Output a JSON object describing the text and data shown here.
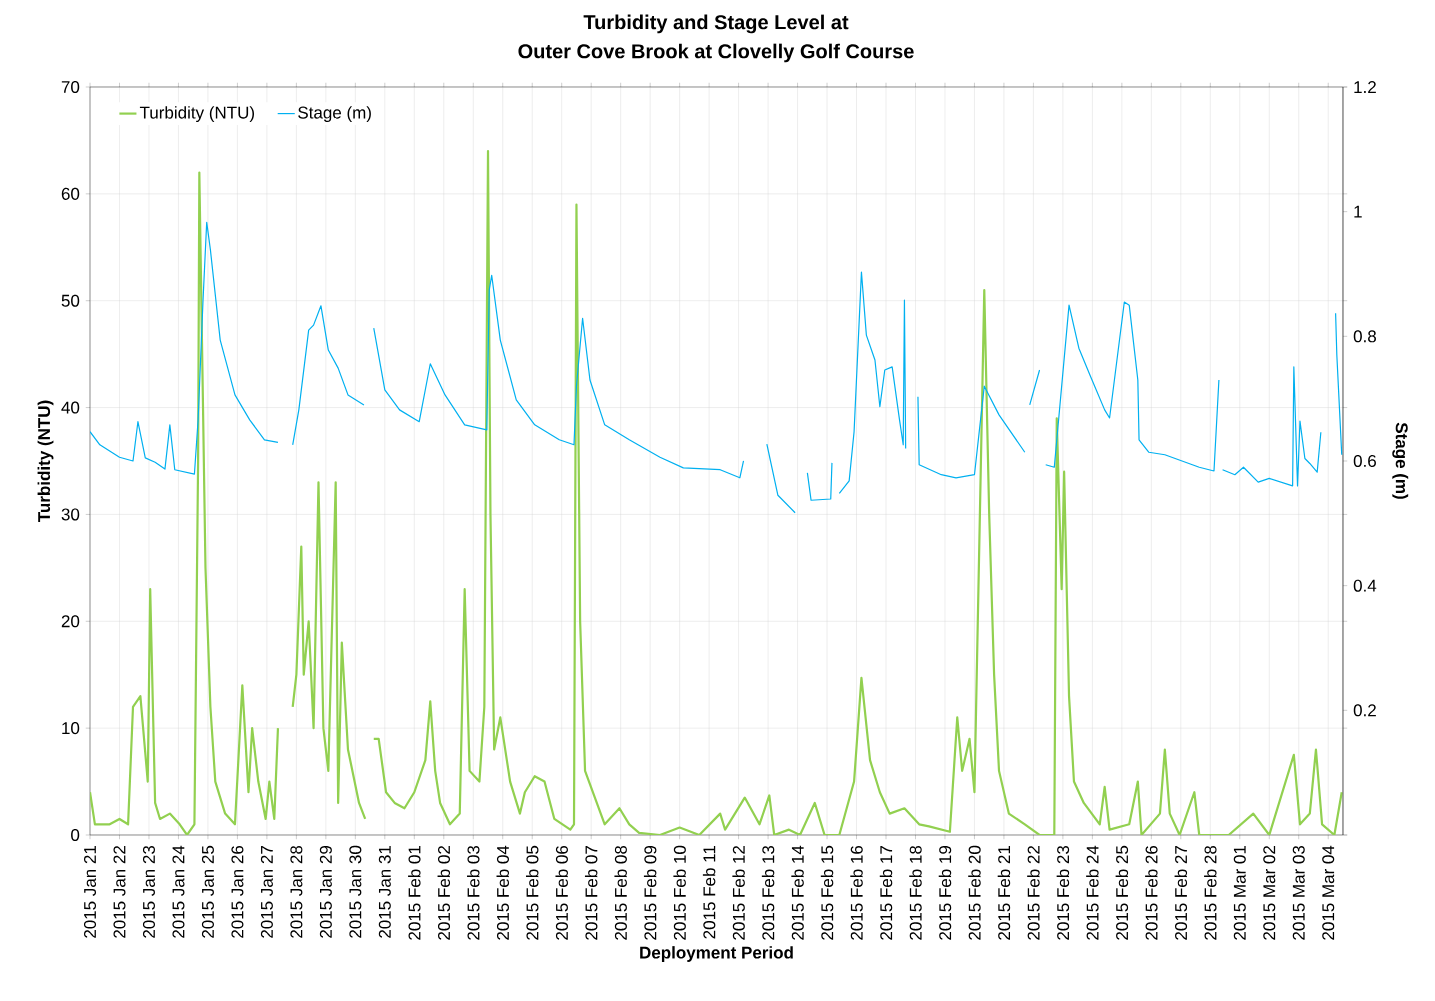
{
  "chart_data": {
    "type": "line",
    "title": "Turbidity and Stage Level at",
    "subtitle": "Outer Cove Brook at Clovelly Golf Course",
    "xlabel": "Deployment Period",
    "ylabel": "Turbidity (NTU)",
    "y2label": "Stage (m)",
    "xlim": [
      "2015-01-21T00:00",
      "2015-03-04T12:00"
    ],
    "xticks": [
      {
        "value": "2015-01-21",
        "label": "2015 Jan 21"
      },
      {
        "value": "2015-01-22",
        "label": "2015 Jan 22"
      },
      {
        "value": "2015-01-23",
        "label": "2015 Jan 23"
      },
      {
        "value": "2015-01-24",
        "label": "2015 Jan 24"
      },
      {
        "value": "2015-01-25",
        "label": "2015 Jan 25"
      },
      {
        "value": "2015-01-26",
        "label": "2015 Jan 26"
      },
      {
        "value": "2015-01-27",
        "label": "2015 Jan 27"
      },
      {
        "value": "2015-01-28",
        "label": "2015 Jan 28"
      },
      {
        "value": "2015-01-29",
        "label": "2015 Jan 29"
      },
      {
        "value": "2015-01-30",
        "label": "2015 Jan 30"
      },
      {
        "value": "2015-01-31",
        "label": "2015 Jan 31"
      },
      {
        "value": "2015-02-01",
        "label": "2015 Feb 01"
      },
      {
        "value": "2015-02-02",
        "label": "2015 Feb 02"
      },
      {
        "value": "2015-02-03",
        "label": "2015 Feb 03"
      },
      {
        "value": "2015-02-04",
        "label": "2015 Feb 04"
      },
      {
        "value": "2015-02-05",
        "label": "2015 Feb 05"
      },
      {
        "value": "2015-02-06",
        "label": "2015 Feb 06"
      },
      {
        "value": "2015-02-07",
        "label": "2015 Feb 07"
      },
      {
        "value": "2015-02-08",
        "label": "2015 Feb 08"
      },
      {
        "value": "2015-02-09",
        "label": "2015 Feb 09"
      },
      {
        "value": "2015-02-10",
        "label": "2015 Feb 10"
      },
      {
        "value": "2015-02-11",
        "label": "2015 Feb 11"
      },
      {
        "value": "2015-02-12",
        "label": "2015 Feb 12"
      },
      {
        "value": "2015-02-13",
        "label": "2015 Feb 13"
      },
      {
        "value": "2015-02-14",
        "label": "2015 Feb 14"
      },
      {
        "value": "2015-02-15",
        "label": "2015 Feb 15"
      },
      {
        "value": "2015-02-16",
        "label": "2015 Feb 16"
      },
      {
        "value": "2015-02-17",
        "label": "2015 Feb 17"
      },
      {
        "value": "2015-02-18",
        "label": "2015 Feb 18"
      },
      {
        "value": "2015-02-19",
        "label": "2015 Feb 19"
      },
      {
        "value": "2015-02-20",
        "label": "2015 Feb 20"
      },
      {
        "value": "2015-02-21",
        "label": "2015 Feb 21"
      },
      {
        "value": "2015-02-22",
        "label": "2015 Feb 22"
      },
      {
        "value": "2015-02-23",
        "label": "2015 Feb 23"
      },
      {
        "value": "2015-02-24",
        "label": "2015 Feb 24"
      },
      {
        "value": "2015-02-25",
        "label": "2015 Feb 25"
      },
      {
        "value": "2015-02-26",
        "label": "2015 Feb 26"
      },
      {
        "value": "2015-02-27",
        "label": "2015 Feb 27"
      },
      {
        "value": "2015-02-28",
        "label": "2015 Feb 28"
      },
      {
        "value": "2015-03-01",
        "label": "2015 Mar 01"
      },
      {
        "value": "2015-03-02",
        "label": "2015 Mar 02"
      },
      {
        "value": "2015-03-03",
        "label": "2015 Mar 03"
      },
      {
        "value": "2015-03-04",
        "label": "2015 Mar 04"
      }
    ],
    "ylim": [
      0,
      70
    ],
    "yticks": [
      0,
      10,
      20,
      30,
      40,
      50,
      60,
      70
    ],
    "y2lim": [
      0,
      1.2
    ],
    "y2ticks": [
      {
        "value": 0,
        "label": null
      },
      0.2,
      0.4,
      0.6,
      0.8,
      1,
      1.2
    ],
    "grid": true,
    "legend": "top left",
    "series": [
      {
        "name": "Turbidity (NTU)",
        "color": "#92d050",
        "x": [
          "2015-01-21T00:00",
          "2015-01-21T04:00",
          "2015-01-21T16:00",
          "2015-01-22T00:00",
          "2015-01-22T07:00",
          "2015-01-22T11:00",
          "2015-01-22T17:00",
          "2015-01-22T23:00",
          "2015-01-23T01:00",
          "2015-01-23T05:00",
          "2015-01-23T09:00",
          "2015-01-23T17:00",
          "2015-01-24T01:00",
          "2015-01-24T07:00",
          "2015-01-24T13:00",
          "2015-01-24T16:00",
          "2015-01-24T17:00",
          "2015-01-24T20:00",
          "2015-01-24T22:00",
          "2015-01-25T02:00",
          "2015-01-25T06:00",
          "2015-01-25T14:00",
          "2015-01-25T22:00",
          "2015-01-26T04:00",
          "2015-01-26T09:00",
          "2015-01-26T12:00",
          "2015-01-26T17:00",
          "2015-01-26T23:00",
          "2015-01-27T02:00",
          "2015-01-27T06:00",
          "2015-01-27T09:00",
          "2015-01-27T16:00",
          "2015-01-27T21:00",
          "2015-01-28T00:00",
          "2015-01-28T04:00",
          "2015-01-28T06:00",
          "2015-01-28T10:00",
          "2015-01-28T14:00",
          "2015-01-28T18:00",
          "2015-01-28T22:00",
          "2015-01-29T02:00",
          "2015-01-29T08:00",
          "2015-01-29T10:00",
          "2015-01-29T13:00",
          "2015-01-29T18:00",
          "2015-01-30T03:00",
          "2015-01-30T08:00",
          "2015-01-30T12:00",
          "2015-01-30T15:00",
          "2015-01-30T19:00",
          "2015-01-31T01:00",
          "2015-01-31T08:00",
          "2015-01-31T16:00",
          "2015-02-01T00:00",
          "2015-02-01T09:00",
          "2015-02-01T13:00",
          "2015-02-01T17:00",
          "2015-02-01T21:00",
          "2015-02-02T05:00",
          "2015-02-02T13:00",
          "2015-02-02T17:00",
          "2015-02-02T21:00",
          "2015-02-03T05:00",
          "2015-02-03T09:00",
          "2015-02-03T12:00",
          "2015-02-03T14:00",
          "2015-02-03T17:00",
          "2015-02-03T22:00",
          "2015-02-04T06:00",
          "2015-02-04T14:00",
          "2015-02-04T18:00",
          "2015-02-05T02:00",
          "2015-02-05T10:00",
          "2015-02-05T18:00",
          "2015-02-06T07:00",
          "2015-02-06T10:00",
          "2015-02-06T12:00",
          "2015-02-06T15:00",
          "2015-02-06T19:00",
          "2015-02-07T03:00",
          "2015-02-07T11:00",
          "2015-02-07T23:00",
          "2015-02-08T07:00",
          "2015-02-08T15:00",
          "2015-02-09T08:00",
          "2015-02-10T00:00",
          "2015-02-10T16:00",
          "2015-02-11T09:00",
          "2015-02-11T13:00",
          "2015-02-12T05:00",
          "2015-02-12T17:00",
          "2015-02-13T01:00",
          "2015-02-13T05:00",
          "2015-02-13T17:00",
          "2015-02-14T02:00",
          "2015-02-14T14:00",
          "2015-02-14T22:00",
          "2015-02-15T10:00",
          "2015-02-15T22:00",
          "2015-02-16T04:00",
          "2015-02-16T11:00",
          "2015-02-16T19:00",
          "2015-02-17T03:00",
          "2015-02-17T15:00",
          "2015-02-18T03:00",
          "2015-02-18T11:00",
          "2015-02-19T04:00",
          "2015-02-19T10:00",
          "2015-02-19T14:00",
          "2015-02-19T20:00",
          "2015-02-20T00:00",
          "2015-02-20T08:00",
          "2015-02-20T12:00",
          "2015-02-20T16:00",
          "2015-02-20T20:00",
          "2015-02-21T04:00",
          "2015-02-21T17:00",
          "2015-02-22T05:00",
          "2015-02-22T17:00",
          "2015-02-22T19:00",
          "2015-02-22T23:00",
          "2015-02-23T01:00",
          "2015-02-23T05:00",
          "2015-02-23T09:00",
          "2015-02-23T17:00",
          "2015-02-24T06:00",
          "2015-02-24T10:00",
          "2015-02-24T14:00",
          "2015-02-25T06:00",
          "2015-02-25T13:00",
          "2015-02-25T16:00",
          "2015-02-26T07:00",
          "2015-02-26T11:00",
          "2015-02-26T15:00",
          "2015-02-26T23:00",
          "2015-02-27T11:00",
          "2015-02-27T15:00",
          "2015-02-28T15:00",
          "2015-03-01T11:00",
          "2015-03-02T00:00",
          "2015-03-02T20:00",
          "2015-03-03T01:00",
          "2015-03-03T09:00",
          "2015-03-03T14:00",
          "2015-03-03T19:00",
          "2015-03-04T05:00",
          "2015-03-04T11:00"
        ],
        "values": [
          4,
          1,
          1,
          1.5,
          1,
          12,
          13,
          5,
          23,
          3,
          1.5,
          2,
          1,
          0,
          1,
          35,
          62,
          40,
          25,
          12,
          5,
          2,
          1,
          14,
          4,
          10,
          5,
          1.5,
          5,
          1.5,
          10,
          null,
          12,
          15,
          27,
          15,
          20,
          10,
          33,
          10,
          6,
          33,
          3,
          18,
          8,
          3,
          1.5,
          null,
          9,
          9,
          4,
          3,
          2.5,
          4,
          7,
          12.5,
          6,
          3,
          1,
          2,
          23,
          6,
          5,
          12,
          64,
          30,
          8,
          11,
          5,
          2,
          4,
          5.5,
          5,
          1.5,
          0.5,
          1,
          59,
          20,
          6,
          3.5,
          1,
          2.5,
          1,
          0.2,
          0,
          0.7,
          0,
          2,
          0.5,
          3.5,
          1,
          3.7,
          0,
          0.5,
          0,
          3,
          0,
          0,
          5,
          14.7,
          7,
          4,
          2,
          2.5,
          1,
          0.8,
          0.3,
          11,
          6,
          9,
          4,
          51,
          30,
          15,
          6,
          2,
          1,
          0,
          0,
          39,
          23,
          34,
          13,
          5,
          3,
          1,
          4.5,
          0.5,
          1,
          5,
          0,
          2,
          8,
          2,
          0,
          4,
          0,
          0,
          2,
          0,
          7.5,
          1,
          2,
          8,
          1,
          0,
          4
        ]
      },
      {
        "name": "Stage (m)",
        "color": "#00b0f0",
        "axis": "y2",
        "x": [
          "2015-01-21T00:00",
          "2015-01-21T08:00",
          "2015-01-22T00:00",
          "2015-01-22T11:00",
          "2015-01-22T15:00",
          "2015-01-22T21:00",
          "2015-01-23T05:00",
          "2015-01-23T13:00",
          "2015-01-23T17:00",
          "2015-01-23T21:00",
          "2015-01-24T13:00",
          "2015-01-24T16:00",
          "2015-01-24T20:00",
          "2015-01-24T23:00",
          "2015-01-25T02:00",
          "2015-01-25T10:00",
          "2015-01-25T22:00",
          "2015-01-26T10:00",
          "2015-01-26T22:00",
          "2015-01-27T09:00",
          "2015-01-27T16:00",
          "2015-01-27T21:00",
          "2015-01-28T02:00",
          "2015-01-28T10:00",
          "2015-01-28T14:00",
          "2015-01-28T20:00",
          "2015-01-29T02:00",
          "2015-01-29T10:00",
          "2015-01-29T18:00",
          "2015-01-30T07:00",
          "2015-01-30T12:00",
          "2015-01-30T15:00",
          "2015-01-31T00:00",
          "2015-01-31T12:00",
          "2015-02-01T04:00",
          "2015-02-01T13:00",
          "2015-02-02T01:00",
          "2015-02-02T17:00",
          "2015-02-03T11:00",
          "2015-02-03T13:00",
          "2015-02-03T15:00",
          "2015-02-03T22:00",
          "2015-02-04T11:00",
          "2015-02-05T02:00",
          "2015-02-05T22:00",
          "2015-02-06T10:00",
          "2015-02-06T12:00",
          "2015-02-06T17:00",
          "2015-02-06T23:00",
          "2015-02-07T11:00",
          "2015-02-08T07:00",
          "2015-02-09T08:00",
          "2015-02-10T03:00",
          "2015-02-11T09:00",
          "2015-02-12T01:00",
          "2015-02-12T04:00",
          "2015-02-12T10:00",
          "2015-02-12T23:00",
          "2015-02-13T08:00",
          "2015-02-13T22:00",
          "2015-02-14T03:00",
          "2015-02-14T08:00",
          "2015-02-14T11:00",
          "2015-02-15T03:00",
          "2015-02-15T04:00",
          "2015-02-15T06:00",
          "2015-02-15T10:00",
          "2015-02-15T18:00",
          "2015-02-15T22:00",
          "2015-02-16T04:00",
          "2015-02-16T08:00",
          "2015-02-16T15:00",
          "2015-02-16T19:00",
          "2015-02-16T23:00",
          "2015-02-17T05:00",
          "2015-02-17T11:00",
          "2015-02-17T14:00",
          "2015-02-17T15:00",
          "2015-02-17T16:00",
          "2015-02-17T19:00",
          "2015-02-18T02:00",
          "2015-02-18T03:00",
          "2015-02-18T21:00",
          "2015-02-19T09:00",
          "2015-02-20T00:00",
          "2015-02-20T08:00",
          "2015-02-20T20:00",
          "2015-02-21T17:00",
          "2015-02-21T19:00",
          "2015-02-21T21:00",
          "2015-02-22T05:00",
          "2015-02-22T08:00",
          "2015-02-22T10:00",
          "2015-02-22T17:00",
          "2015-02-23T05:00",
          "2015-02-23T13:00",
          "2015-02-23T22:00",
          "2015-02-24T10:00",
          "2015-02-24T14:00",
          "2015-02-25T02:00",
          "2015-02-25T06:00",
          "2015-02-25T13:00",
          "2015-02-25T14:00",
          "2015-02-25T22:00",
          "2015-02-26T11:00",
          "2015-02-27T15:00",
          "2015-02-28T03:00",
          "2015-02-28T07:00",
          "2015-02-28T09:00",
          "2015-02-28T10:00",
          "2015-02-28T20:00",
          "2015-03-01T03:00",
          "2015-03-01T15:00",
          "2015-03-02T00:00",
          "2015-03-02T19:00",
          "2015-03-02T20:00",
          "2015-03-02T23:00",
          "2015-03-03T01:00",
          "2015-03-03T05:00",
          "2015-03-03T09:00",
          "2015-03-03T15:00",
          "2015-03-03T18:00",
          "2015-03-03T23:00",
          "2015-03-04T06:00",
          "2015-03-04T07:00",
          "2015-03-04T11:00"
        ],
        "values": [
          0.647,
          0.626,
          0.606,
          0.6,
          0.663,
          0.605,
          0.598,
          0.587,
          0.658,
          0.586,
          0.579,
          0.666,
          0.858,
          0.983,
          0.939,
          0.794,
          0.706,
          0.666,
          0.634,
          0.63,
          null,
          0.626,
          0.682,
          0.81,
          0.818,
          0.849,
          0.778,
          0.749,
          0.706,
          0.69,
          null,
          0.813,
          0.714,
          0.682,
          0.663,
          0.756,
          0.706,
          0.658,
          0.65,
          0.874,
          0.898,
          0.794,
          0.698,
          0.658,
          0.634,
          0.626,
          0.72,
          0.829,
          0.73,
          0.658,
          0.634,
          0.606,
          0.589,
          0.586,
          0.573,
          0.6,
          null,
          0.627,
          0.545,
          0.517,
          null,
          0.581,
          0.537,
          0.539,
          0.597,
          null,
          0.548,
          0.568,
          0.647,
          0.903,
          0.802,
          0.762,
          0.687,
          0.746,
          0.751,
          0.666,
          0.626,
          0.858,
          0.62,
          null,
          0.703,
          0.594,
          0.578,
          0.573,
          0.578,
          0.72,
          0.674,
          0.614,
          null,
          0.69,
          0.746,
          null,
          0.594,
          0.59,
          0.85,
          0.781,
          0.738,
          0.682,
          0.669,
          0.855,
          0.85,
          0.73,
          0.634,
          0.614,
          0.61,
          0.59,
          0.584,
          0.73,
          null,
          0.586,
          0.578,
          0.59,
          0.566,
          0.572,
          0.56,
          0.751,
          0.56,
          0.664,
          0.604,
          0.596,
          0.582,
          0.646,
          null,
          0.837,
          0.77,
          0.61
        ]
      }
    ]
  }
}
